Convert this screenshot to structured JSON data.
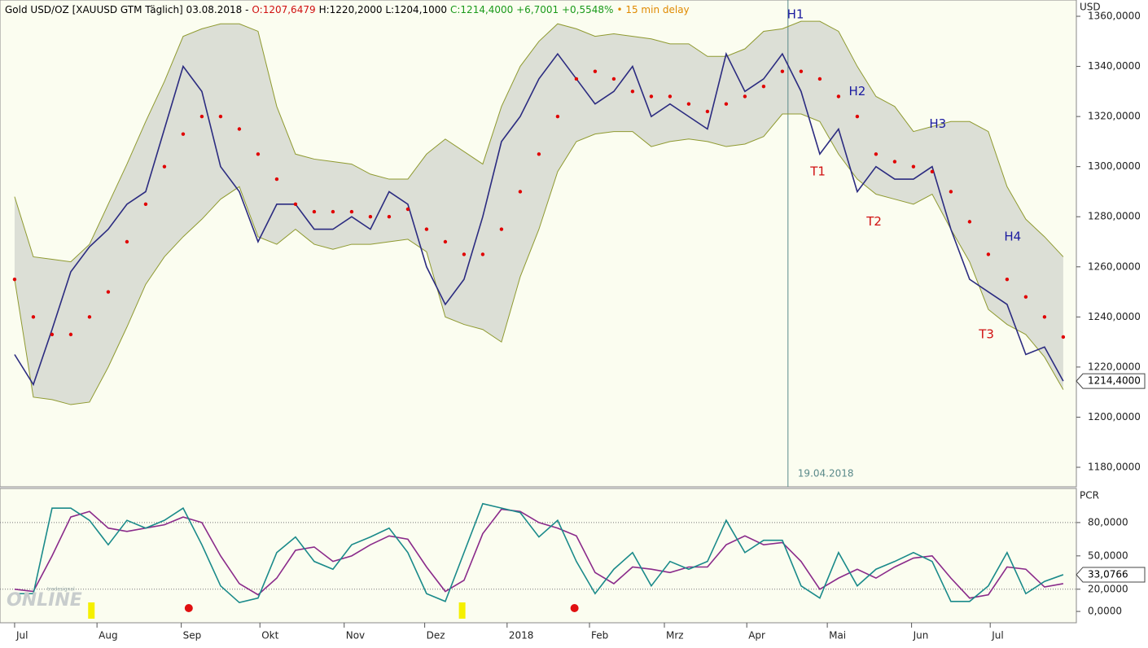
{
  "header": [
    {
      "text": "Gold USD/OZ [XAUUSD GTM Täglich] 03.08.2018 -",
      "color": "#000000"
    },
    {
      "text": "O:1207,6479",
      "color": "#d01010"
    },
    {
      "text": "H:1220,2000 L:1204,1000",
      "color": "#000000"
    },
    {
      "text": "C:1214,4000 +6,7001 +0,5548%",
      "color": "#1a9a1a"
    },
    {
      "text": "• 15 min delay",
      "color": "#e08a00"
    }
  ],
  "logo": {
    "small": "tradesignal",
    "big": "ONLINE"
  },
  "chart_data": [
    {
      "type": "line",
      "unit": "USD",
      "background": "#fbfdf0",
      "band_fill": "#dcdfd6",
      "x": [
        0,
        1,
        2,
        3,
        4,
        5,
        6,
        7,
        8,
        9,
        10,
        11,
        12,
        13,
        14,
        15,
        16,
        17,
        18,
        19,
        20,
        21,
        22,
        23,
        24,
        25,
        26,
        27,
        28,
        29,
        30,
        31,
        32,
        33,
        34,
        35,
        36,
        37,
        38,
        39,
        40,
        41,
        42,
        43,
        44,
        45,
        46,
        47,
        48,
        49,
        50,
        51,
        52,
        53,
        54,
        55,
        56
      ],
      "xlim": [
        -0.78,
        56.7
      ],
      "ylim": [
        1172.2,
        1366.5
      ],
      "yticks": [
        {
          "value": 1180,
          "label": "1180,0000"
        },
        {
          "value": 1200,
          "label": "1200,0000"
        },
        {
          "value": 1220,
          "label": "1220,0000"
        },
        {
          "value": 1240,
          "label": "1240,0000"
        },
        {
          "value": 1260,
          "label": "1260,0000"
        },
        {
          "value": 1280,
          "label": "1280,0000"
        },
        {
          "value": 1300,
          "label": "1300,0000"
        },
        {
          "value": 1320,
          "label": "1320,0000"
        },
        {
          "value": 1340,
          "label": "1340,0000"
        },
        {
          "value": 1360,
          "label": "1360,0000"
        }
      ],
      "series": [
        {
          "style": "band-upper",
          "color": "#8f9a30",
          "values": [
            1288,
            1264,
            1263,
            1262,
            1269,
            1285,
            1301,
            1318,
            1334,
            1352,
            1355,
            1357,
            1357,
            1354,
            1324,
            1305,
            1303,
            1302,
            1301,
            1297,
            1295,
            1295,
            1305,
            1311,
            1306,
            1301,
            1324,
            1340,
            1350,
            1357,
            1355,
            1352,
            1353,
            1352,
            1351,
            1349,
            1349,
            1344,
            1344,
            1347,
            1354,
            1355,
            1358,
            1358,
            1354,
            1340,
            1328,
            1324,
            1314,
            1316,
            1318,
            1318,
            1314,
            1292,
            1279,
            1272,
            1264
          ]
        },
        {
          "style": "band-lower",
          "color": "#8f9a30",
          "values": [
            1255,
            1208,
            1207,
            1205,
            1206,
            1220,
            1236,
            1253,
            1264,
            1272,
            1279,
            1287,
            1292,
            1272,
            1269,
            1275,
            1269,
            1267,
            1269,
            1269,
            1270,
            1271,
            1266,
            1240,
            1237,
            1235,
            1230,
            1256,
            1275,
            1298,
            1310,
            1313,
            1314,
            1314,
            1308,
            1310,
            1311,
            1310,
            1308,
            1309,
            1312,
            1321,
            1321,
            1318,
            1305,
            1295,
            1289,
            1287,
            1285,
            1289,
            1275,
            1262,
            1243,
            1237,
            1233,
            1224,
            1211
          ]
        },
        {
          "style": "line",
          "color": "#2b2b80",
          "values": [
            1225,
            1213,
            1235,
            1258,
            1268,
            1275,
            1285,
            1290,
            1315,
            1340,
            1330,
            1300,
            1290,
            1270,
            1285,
            1285,
            1275,
            1275,
            1280,
            1275,
            1290,
            1285,
            1260,
            1245,
            1255,
            1280,
            1310,
            1320,
            1335,
            1345,
            1335,
            1325,
            1330,
            1340,
            1320,
            1325,
            1320,
            1315,
            1345,
            1330,
            1335,
            1345,
            1330,
            1305,
            1315,
            1290,
            1300,
            1295,
            1295,
            1300,
            1275,
            1255,
            1250,
            1245,
            1225,
            1228,
            1214.4
          ]
        },
        {
          "style": "dots",
          "color": "#e00000",
          "values": [
            1255,
            1240,
            1233,
            1233,
            1240,
            1250,
            1270,
            1285,
            1300,
            1313,
            1320,
            1320,
            1315,
            1305,
            1295,
            1285,
            1282,
            1282,
            1282,
            1280,
            1280,
            1283,
            1275,
            1270,
            1265,
            1265,
            1275,
            1290,
            1305,
            1320,
            1335,
            1338,
            1335,
            1330,
            1328,
            1328,
            1325,
            1322,
            1325,
            1328,
            1332,
            1338,
            1338,
            1335,
            1328,
            1320,
            1305,
            1302,
            1300,
            1298,
            1290,
            1278,
            1265,
            1255,
            1248,
            1240,
            1232
          ]
        }
      ],
      "last": {
        "value": 1214.4,
        "label": "1214,4000"
      },
      "vline": {
        "x": 41.3,
        "label": "19.04.2018",
        "color": "#5a8a8a"
      },
      "annotations": [
        {
          "text": "H1",
          "x": 41.7,
          "y": 1360.6,
          "color": "#1a1aa0"
        },
        {
          "text": "H2",
          "x": 45.0,
          "y": 1330,
          "color": "#1a1aa0"
        },
        {
          "text": "H3",
          "x": 49.3,
          "y": 1317,
          "color": "#1a1aa0"
        },
        {
          "text": "H4",
          "x": 53.3,
          "y": 1272,
          "color": "#1a1aa0"
        },
        {
          "text": "T1",
          "x": 42.9,
          "y": 1298,
          "color": "#d01010"
        },
        {
          "text": "T2",
          "x": 45.9,
          "y": 1278,
          "color": "#d01010"
        },
        {
          "text": "T3",
          "x": 51.9,
          "y": 1233,
          "color": "#d01010"
        }
      ]
    },
    {
      "type": "line",
      "unit": "PCR",
      "background": "#fbfdf0",
      "x": [
        0,
        1,
        2,
        3,
        4,
        5,
        6,
        7,
        8,
        9,
        10,
        11,
        12,
        13,
        14,
        15,
        16,
        17,
        18,
        19,
        20,
        21,
        22,
        23,
        24,
        25,
        26,
        27,
        28,
        29,
        30,
        31,
        32,
        33,
        34,
        35,
        36,
        37,
        38,
        39,
        40,
        41,
        42,
        43,
        44,
        45,
        46,
        47,
        48,
        49,
        50,
        51,
        52,
        53,
        54,
        55,
        56
      ],
      "xlim": [
        -0.78,
        56.7
      ],
      "xticks": [
        {
          "value": 0,
          "label": "Jul"
        },
        {
          "value": 4.4,
          "label": "Aug"
        },
        {
          "value": 8.9,
          "label": "Sep"
        },
        {
          "value": 13.1,
          "label": "Okt"
        },
        {
          "value": 17.6,
          "label": "Nov"
        },
        {
          "value": 21.9,
          "label": "Dez"
        },
        {
          "value": 26.3,
          "label": "2018"
        },
        {
          "value": 30.7,
          "label": "Feb"
        },
        {
          "value": 34.7,
          "label": "Mrz"
        },
        {
          "value": 39.1,
          "label": "Apr"
        },
        {
          "value": 43.4,
          "label": "Mai"
        },
        {
          "value": 47.9,
          "label": "Jun"
        },
        {
          "value": 52.1,
          "label": "Jul"
        }
      ],
      "ylim": [
        -10.2,
        110.7
      ],
      "yticks": [
        {
          "value": 0,
          "label": "0,0000"
        },
        {
          "value": 20,
          "label": "20,0000"
        },
        {
          "value": 50,
          "label": "50,0000"
        },
        {
          "value": 80,
          "label": "80,0000"
        }
      ],
      "hlines": [
        80,
        20
      ],
      "series": [
        {
          "style": "line",
          "color": "#8a2a8a",
          "values": [
            20,
            18,
            50,
            85,
            90,
            75,
            72,
            75,
            78,
            85,
            80,
            50,
            25,
            15,
            30,
            55,
            58,
            45,
            50,
            60,
            68,
            65,
            40,
            18,
            28,
            70,
            92,
            90,
            80,
            75,
            68,
            35,
            25,
            40,
            38,
            35,
            40,
            40,
            60,
            68,
            60,
            62,
            45,
            20,
            30,
            38,
            30,
            40,
            48,
            50,
            30,
            12,
            15,
            40,
            38,
            22,
            25
          ]
        },
        {
          "style": "line",
          "color": "#1a8a8a",
          "values": [
            16,
            16,
            93,
            93,
            82,
            60,
            82,
            75,
            82,
            93,
            60,
            23,
            8,
            12,
            53,
            67,
            45,
            38,
            60,
            67,
            75,
            53,
            16,
            9,
            53,
            97,
            93,
            89,
            67,
            82,
            45,
            16,
            38,
            53,
            23,
            45,
            38,
            45,
            82,
            53,
            64,
            64,
            23,
            12,
            53,
            23,
            38,
            45,
            53,
            45,
            9,
            9,
            23,
            53,
            16,
            27,
            33.0766
          ]
        }
      ],
      "last": {
        "value": 33.0766,
        "label": "33,0766"
      },
      "buy_signals": [
        4.1,
        23.9
      ],
      "sell_signals": [
        9.3,
        29.9
      ]
    }
  ]
}
